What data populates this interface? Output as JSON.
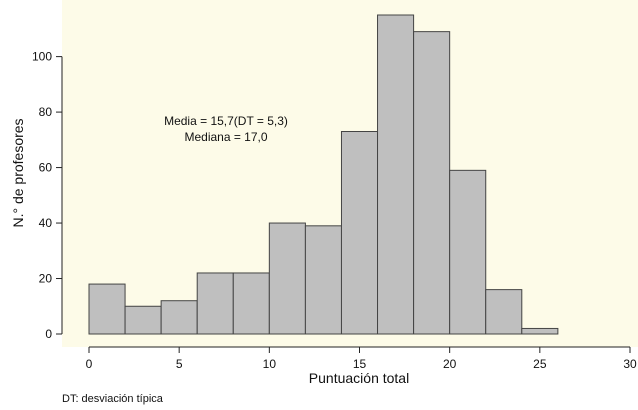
{
  "chart_data": {
    "type": "bar",
    "subtype": "histogram",
    "title": "",
    "xlabel": "Puntuación total",
    "ylabel": "N.° de profesores",
    "xlim": [
      0,
      30
    ],
    "ylim": [
      0,
      115
    ],
    "x_ticks": [
      0,
      5,
      10,
      15,
      20,
      25,
      30
    ],
    "y_ticks": [
      0,
      20,
      40,
      60,
      80,
      100
    ],
    "bin_width": 2,
    "bins": [
      {
        "x0": 0,
        "x1": 2,
        "count": 18
      },
      {
        "x0": 2,
        "x1": 4,
        "count": 10
      },
      {
        "x0": 4,
        "x1": 6,
        "count": 12
      },
      {
        "x0": 6,
        "x1": 8,
        "count": 22
      },
      {
        "x0": 8,
        "x1": 10,
        "count": 22
      },
      {
        "x0": 10,
        "x1": 12,
        "count": 40
      },
      {
        "x0": 12,
        "x1": 14,
        "count": 39
      },
      {
        "x0": 14,
        "x1": 16,
        "count": 73
      },
      {
        "x0": 16,
        "x1": 18,
        "count": 115
      },
      {
        "x0": 18,
        "x1": 20,
        "count": 109
      },
      {
        "x0": 20,
        "x1": 22,
        "count": 59
      },
      {
        "x0": 22,
        "x1": 24,
        "count": 16
      },
      {
        "x0": 24,
        "x1": 26,
        "count": 2
      }
    ],
    "annotations": [
      "Media = 15,7(DT = 5,3)",
      "Mediana = 17,0"
    ],
    "grid": false,
    "colors": {
      "plot_background": "#fdfbe8",
      "bar_fill": "#bfbfbf",
      "bar_stroke": "#444444",
      "axis": "#222222"
    }
  },
  "footnote": "DT: desviación típica"
}
